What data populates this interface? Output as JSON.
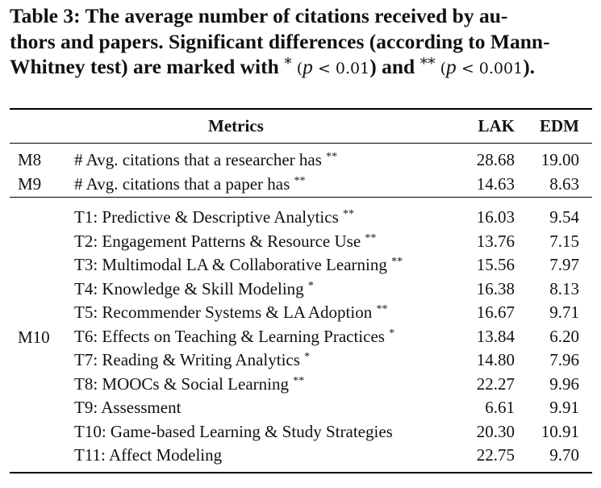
{
  "caption": {
    "line1": "Table 3: The average number of citations received by au-",
    "line2": "thors and papers. Significant differences (according to Mann-",
    "line3_a": "Whitney test) are marked with ",
    "star1": "*",
    "open1": " (",
    "p1": "p",
    "lt1": " < ",
    "v1": "0.01",
    "mid": ") and ",
    "star2": "**",
    "open2": " (",
    "p2": "p",
    "lt2": " < ",
    "v2": "0.001",
    "end": ")."
  },
  "columns": {
    "metrics": "Metrics",
    "lak": "LAK",
    "edm": "EDM"
  },
  "group1": [
    {
      "id": "M8",
      "metric": "# Avg. citations that a researcher has",
      "sig": "**",
      "lak": "28.68",
      "edm": "19.00"
    },
    {
      "id": "M9",
      "metric": "# Avg. citations that a paper has",
      "sig": "**",
      "lak": "14.63",
      "edm": "8.63"
    }
  ],
  "group2_label": "M10",
  "group2": [
    {
      "metric": "T1: Predictive & Descriptive Analytics",
      "sig": "**",
      "lak": "16.03",
      "edm": "9.54"
    },
    {
      "metric": "T2: Engagement Patterns & Resource Use",
      "sig": "**",
      "lak": "13.76",
      "edm": "7.15"
    },
    {
      "metric": "T3: Multimodal LA & Collaborative Learning",
      "sig": "**",
      "lak": "15.56",
      "edm": "7.97"
    },
    {
      "metric": "T4: Knowledge & Skill Modeling",
      "sig": "*",
      "lak": "16.38",
      "edm": "8.13"
    },
    {
      "metric": "T5: Recommender Systems & LA Adoption",
      "sig": "**",
      "lak": "16.67",
      "edm": "9.71"
    },
    {
      "metric": "T6: Effects on Teaching & Learning Practices",
      "sig": "*",
      "lak": "13.84",
      "edm": "6.20"
    },
    {
      "metric": "T7: Reading & Writing Analytics",
      "sig": "*",
      "lak": "14.80",
      "edm": "7.96"
    },
    {
      "metric": "T8: MOOCs & Social Learning",
      "sig": "**",
      "lak": "22.27",
      "edm": "9.96"
    },
    {
      "metric": "T9: Assessment",
      "sig": "",
      "lak": "6.61",
      "edm": "9.91"
    },
    {
      "metric": "T10: Game-based Learning & Study Strategies",
      "sig": "",
      "lak": "20.30",
      "edm": "10.91"
    },
    {
      "metric": "T11: Affect Modeling",
      "sig": "",
      "lak": "22.75",
      "edm": "9.70"
    }
  ]
}
